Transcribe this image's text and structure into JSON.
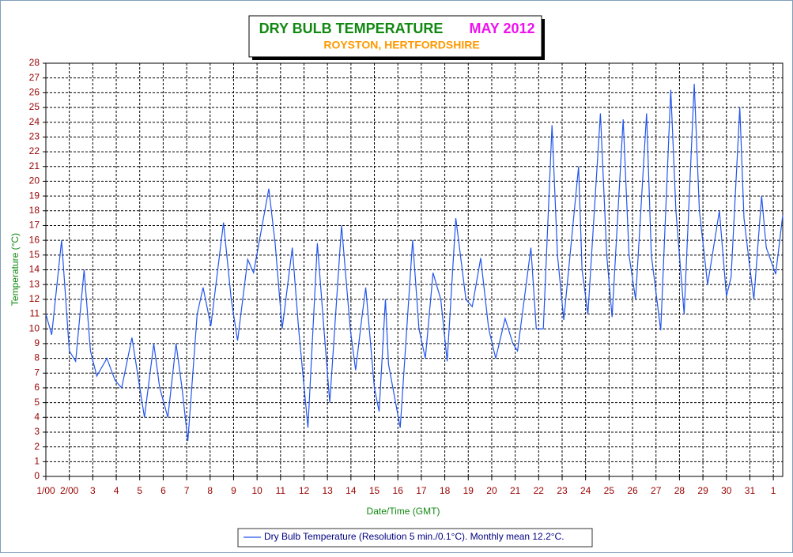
{
  "chart_data": {
    "type": "line",
    "title": "DRY BULB TEMPERATURE",
    "title_month": "MAY 2012",
    "subtitle": "ROYSTON, HERTFORDSHIRE",
    "xlabel": "Date/Time (GMT)",
    "ylabel": "Temperature (°C)",
    "grid": true,
    "x": [
      1,
      1.25,
      1.67,
      2.0,
      2.27,
      2.63,
      2.9,
      3.17,
      3.6,
      3.95,
      4.23,
      4.67,
      5.2,
      5.6,
      5.85,
      6.2,
      6.55,
      6.8,
      7.05,
      7.45,
      7.7,
      8.03,
      8.57,
      8.9,
      9.17,
      9.6,
      9.85,
      10.5,
      10.77,
      11.07,
      11.5,
      11.77,
      12.17,
      12.57,
      12.85,
      13.1,
      13.6,
      13.97,
      14.2,
      14.47,
      14.63,
      15.0,
      15.2,
      15.47,
      15.6,
      16.1,
      16.63,
      16.9,
      17.17,
      17.5,
      17.83,
      18.1,
      18.47,
      18.9,
      19.17,
      19.53,
      19.87,
      20.17,
      20.57,
      20.9,
      21.1,
      21.67,
      21.9,
      22.2,
      22.57,
      22.8,
      23.07,
      23.7,
      23.85,
      24.1,
      24.63,
      24.9,
      25.13,
      25.6,
      25.85,
      26.13,
      26.6,
      26.8,
      27.2,
      27.63,
      27.85,
      28.2,
      28.63,
      28.85,
      29.2,
      29.7,
      30.0,
      30.2,
      30.57,
      30.75,
      30.97,
      31.17,
      31.5,
      31.7,
      32.1,
      32.4
    ],
    "series": [
      {
        "name": "Dry Bulb Temperature (Resolution 5 min./0.1°C). Monthly mean 12.2°C.",
        "color": "#2255ee",
        "values": [
          11,
          9.6,
          16,
          8.5,
          7.8,
          14,
          8.5,
          6.8,
          8,
          6.5,
          6,
          9.4,
          4,
          9,
          6,
          4,
          9,
          6,
          2.4,
          11,
          12.8,
          10.2,
          17.2,
          12,
          9.2,
          14.7,
          13.8,
          19.5,
          15.8,
          10,
          15.5,
          10,
          3.3,
          15.8,
          10,
          5,
          17,
          10,
          7.2,
          10.8,
          12.8,
          6,
          4.4,
          12,
          7.6,
          3.3,
          16,
          10,
          8,
          13.8,
          12,
          7.8,
          17.5,
          12,
          11.5,
          14.8,
          10,
          8,
          10.7,
          9,
          8.5,
          15.5,
          10,
          10,
          23.8,
          15,
          10.6,
          21,
          14,
          11,
          24.6,
          15,
          10.8,
          24.2,
          15,
          12,
          24.6,
          15,
          9.9,
          26.2,
          18,
          11,
          26.6,
          18,
          13,
          18,
          12.2,
          13.5,
          25,
          17.5,
          14.5,
          12,
          19,
          15.5,
          13.7,
          17.7
        ]
      }
    ],
    "xlim": [
      1,
      32.4
    ],
    "xticks": [
      {
        "value": 1,
        "label": "1/00"
      },
      {
        "value": 2,
        "label": "2/00"
      },
      3,
      4,
      5,
      6,
      7,
      8,
      9,
      10,
      11,
      12,
      13,
      14,
      15,
      16,
      17,
      18,
      19,
      20,
      21,
      22,
      23,
      24,
      25,
      26,
      27,
      28,
      29,
      30,
      31,
      {
        "value": 32,
        "label": "1"
      }
    ],
    "ylim": [
      0,
      28
    ],
    "yticks": [
      0,
      1,
      2,
      3,
      4,
      5,
      6,
      7,
      8,
      9,
      10,
      11,
      12,
      13,
      14,
      15,
      16,
      17,
      18,
      19,
      20,
      21,
      22,
      23,
      24,
      25,
      26,
      27,
      28
    ]
  }
}
